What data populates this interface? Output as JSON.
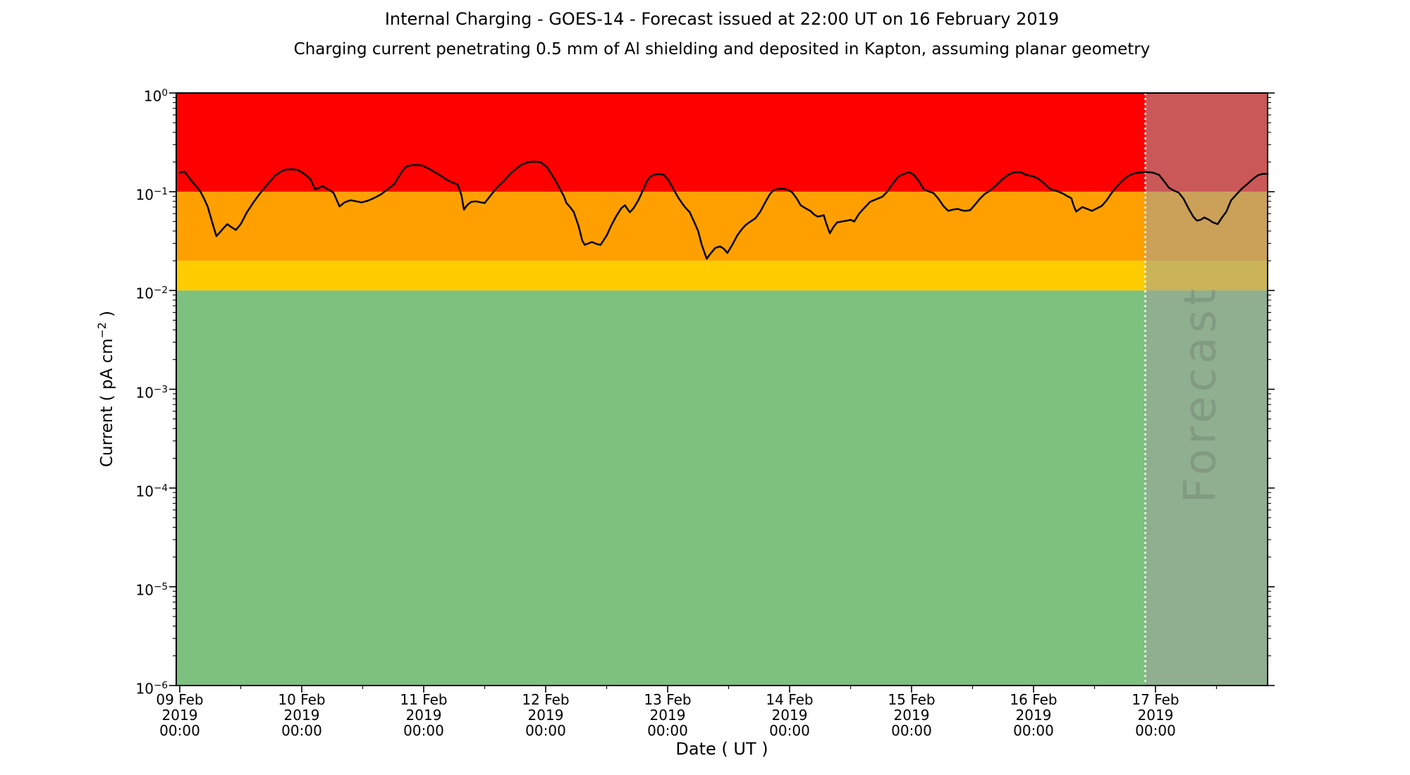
{
  "header": {
    "title": "Internal Charging - GOES-14 - Forecast issued at 22:00 UT on 16 February 2019",
    "subtitle": "Charging current penetrating 0.5 mm of Al shielding and deposited in Kapton, assuming planar geometry"
  },
  "chart_data": {
    "type": "line",
    "title": "Internal Charging - GOES-14 - Forecast issued at 22:00 UT on 16 February 2019",
    "subtitle": "Charging current penetrating 0.5 mm of Al shielding and deposited in Kapton, assuming planar geometry",
    "xlabel": "Date ( UT )",
    "ylabel_prefix": "Current ( pA cm",
    "ylabel_sup": "−2",
    "ylabel_suffix": " )",
    "y_scale": "log",
    "y_domain": [
      1e-06,
      1
    ],
    "x_domain_days": [
      -0.029,
      8.92
    ],
    "x_major_tick_interval_days": 1,
    "x_minor_tick_interval_days": 0.5,
    "grid": "off",
    "legend": "none",
    "xticks": [
      {
        "t": 0,
        "label": [
          "09 Feb",
          "2019",
          "00:00"
        ]
      },
      {
        "t": 1,
        "label": [
          "10 Feb",
          "2019",
          "00:00"
        ]
      },
      {
        "t": 2,
        "label": [
          "11 Feb",
          "2019",
          "00:00"
        ]
      },
      {
        "t": 3,
        "label": [
          "12 Feb",
          "2019",
          "00:00"
        ]
      },
      {
        "t": 4,
        "label": [
          "13 Feb",
          "2019",
          "00:00"
        ]
      },
      {
        "t": 5,
        "label": [
          "14 Feb",
          "2019",
          "00:00"
        ]
      },
      {
        "t": 6,
        "label": [
          "15 Feb",
          "2019",
          "00:00"
        ]
      },
      {
        "t": 7,
        "label": [
          "16 Feb",
          "2019",
          "00:00"
        ]
      },
      {
        "t": 8,
        "label": [
          "17 Feb",
          "2019",
          "00:00"
        ]
      }
    ],
    "yticks": [
      {
        "v": 1,
        "exp": "0"
      },
      {
        "v": 0.1,
        "exp": "−1"
      },
      {
        "v": 0.01,
        "exp": "−2"
      },
      {
        "v": 0.001,
        "exp": "−3"
      },
      {
        "v": 0.0001,
        "exp": "−4"
      },
      {
        "v": 1e-05,
        "exp": "−5"
      },
      {
        "v": 1e-06,
        "exp": "−6"
      }
    ],
    "bands": [
      {
        "name": "red",
        "from": 0.1,
        "to": 1,
        "color": "#ff0000"
      },
      {
        "name": "orange",
        "from": 0.02,
        "to": 0.1,
        "color": "#ffa000"
      },
      {
        "name": "yellow",
        "from": 0.01,
        "to": 0.02,
        "color": "#ffcc00"
      },
      {
        "name": "green",
        "from": 1e-06,
        "to": 0.01,
        "color": "#7cc17d"
      }
    ],
    "forecast": {
      "start_day": 7.9167,
      "end_day": 8.92,
      "watermark": "Forecast",
      "overlay_color": "rgba(160,160,160,0.55)",
      "divider_color": "#ffffff",
      "divider_style": "dotted",
      "watermark_color": "#3c3c3c",
      "watermark_opacity": 0.18
    },
    "series": [
      {
        "name": "charging current",
        "color": "#000000",
        "points": [
          [
            0,
            0.156
          ],
          [
            0.04,
            0.16
          ],
          [
            0.09,
            0.132
          ],
          [
            0.14,
            0.112
          ],
          [
            0.17,
            0.1
          ],
          [
            0.2,
            0.085
          ],
          [
            0.23,
            0.07
          ],
          [
            0.26,
            0.052
          ],
          [
            0.3,
            0.0355
          ],
          [
            0.33,
            0.039
          ],
          [
            0.36,
            0.043
          ],
          [
            0.39,
            0.047
          ],
          [
            0.42,
            0.044
          ],
          [
            0.46,
            0.041
          ],
          [
            0.5,
            0.047
          ],
          [
            0.55,
            0.062
          ],
          [
            0.61,
            0.08
          ],
          [
            0.66,
            0.097
          ],
          [
            0.71,
            0.115
          ],
          [
            0.78,
            0.145
          ],
          [
            0.83,
            0.16
          ],
          [
            0.87,
            0.168
          ],
          [
            0.92,
            0.169
          ],
          [
            0.97,
            0.166
          ],
          [
            1.02,
            0.152
          ],
          [
            1.07,
            0.135
          ],
          [
            1.11,
            0.106
          ],
          [
            1.14,
            0.109
          ],
          [
            1.17,
            0.114
          ],
          [
            1.22,
            0.105
          ],
          [
            1.26,
            0.098
          ],
          [
            1.31,
            0.071
          ],
          [
            1.35,
            0.078
          ],
          [
            1.4,
            0.082
          ],
          [
            1.45,
            0.08
          ],
          [
            1.49,
            0.078
          ],
          [
            1.54,
            0.081
          ],
          [
            1.59,
            0.086
          ],
          [
            1.65,
            0.094
          ],
          [
            1.71,
            0.107
          ],
          [
            1.76,
            0.12
          ],
          [
            1.81,
            0.152
          ],
          [
            1.85,
            0.178
          ],
          [
            1.9,
            0.186
          ],
          [
            1.95,
            0.186
          ],
          [
            1.99,
            0.184
          ],
          [
            2.04,
            0.172
          ],
          [
            2.09,
            0.158
          ],
          [
            2.13,
            0.148
          ],
          [
            2.17,
            0.137
          ],
          [
            2.21,
            0.128
          ],
          [
            2.25,
            0.122
          ],
          [
            2.28,
            0.118
          ],
          [
            2.31,
            0.092
          ],
          [
            2.33,
            0.066
          ],
          [
            2.36,
            0.074
          ],
          [
            2.39,
            0.079
          ],
          [
            2.43,
            0.08
          ],
          [
            2.47,
            0.078
          ],
          [
            2.5,
            0.077
          ],
          [
            2.55,
            0.092
          ],
          [
            2.6,
            0.11
          ],
          [
            2.66,
            0.13
          ],
          [
            2.71,
            0.152
          ],
          [
            2.76,
            0.172
          ],
          [
            2.81,
            0.19
          ],
          [
            2.86,
            0.2
          ],
          [
            2.91,
            0.202
          ],
          [
            2.96,
            0.199
          ],
          [
            3.01,
            0.178
          ],
          [
            3.05,
            0.15
          ],
          [
            3.08,
            0.13
          ],
          [
            3.12,
            0.105
          ],
          [
            3.15,
            0.09
          ],
          [
            3.17,
            0.077
          ],
          [
            3.2,
            0.07
          ],
          [
            3.23,
            0.0625
          ],
          [
            3.27,
            0.045
          ],
          [
            3.3,
            0.032
          ],
          [
            3.32,
            0.029
          ],
          [
            3.35,
            0.03
          ],
          [
            3.38,
            0.031
          ],
          [
            3.42,
            0.0295
          ],
          [
            3.45,
            0.029
          ],
          [
            3.5,
            0.036
          ],
          [
            3.54,
            0.046
          ],
          [
            3.58,
            0.057
          ],
          [
            3.62,
            0.068
          ],
          [
            3.65,
            0.073
          ],
          [
            3.67,
            0.067
          ],
          [
            3.69,
            0.062
          ],
          [
            3.72,
            0.068
          ],
          [
            3.76,
            0.082
          ],
          [
            3.8,
            0.105
          ],
          [
            3.83,
            0.128
          ],
          [
            3.86,
            0.143
          ],
          [
            3.9,
            0.15
          ],
          [
            3.94,
            0.151
          ],
          [
            3.97,
            0.148
          ],
          [
            4.01,
            0.13
          ],
          [
            4.05,
            0.105
          ],
          [
            4.09,
            0.086
          ],
          [
            4.13,
            0.073
          ],
          [
            4.16,
            0.066
          ],
          [
            4.18,
            0.0625
          ],
          [
            4.21,
            0.052
          ],
          [
            4.25,
            0.04
          ],
          [
            4.28,
            0.029
          ],
          [
            4.32,
            0.021
          ],
          [
            4.35,
            0.0235
          ],
          [
            4.39,
            0.027
          ],
          [
            4.43,
            0.028
          ],
          [
            4.46,
            0.0265
          ],
          [
            4.49,
            0.024
          ],
          [
            4.53,
            0.029
          ],
          [
            4.57,
            0.036
          ],
          [
            4.61,
            0.042
          ],
          [
            4.64,
            0.046
          ],
          [
            4.68,
            0.05
          ],
          [
            4.72,
            0.054
          ],
          [
            4.76,
            0.063
          ],
          [
            4.8,
            0.078
          ],
          [
            4.84,
            0.095
          ],
          [
            4.87,
            0.104
          ],
          [
            4.91,
            0.107
          ],
          [
            4.95,
            0.107
          ],
          [
            4.98,
            0.105
          ],
          [
            5.02,
            0.099
          ],
          [
            5.06,
            0.085
          ],
          [
            5.09,
            0.073
          ],
          [
            5.13,
            0.068
          ],
          [
            5.17,
            0.064
          ],
          [
            5.2,
            0.059
          ],
          [
            5.23,
            0.056
          ],
          [
            5.26,
            0.057
          ],
          [
            5.28,
            0.058
          ],
          [
            5.3,
            0.048
          ],
          [
            5.33,
            0.038
          ],
          [
            5.36,
            0.044
          ],
          [
            5.39,
            0.049
          ],
          [
            5.43,
            0.05
          ],
          [
            5.47,
            0.051
          ],
          [
            5.5,
            0.052
          ],
          [
            5.53,
            0.05
          ],
          [
            5.57,
            0.06
          ],
          [
            5.61,
            0.068
          ],
          [
            5.66,
            0.079
          ],
          [
            5.71,
            0.084
          ],
          [
            5.76,
            0.089
          ],
          [
            5.8,
            0.1
          ],
          [
            5.84,
            0.118
          ],
          [
            5.89,
            0.142
          ],
          [
            5.93,
            0.15
          ],
          [
            5.98,
            0.158
          ],
          [
            6.02,
            0.148
          ],
          [
            6.06,
            0.128
          ],
          [
            6.1,
            0.106
          ],
          [
            6.14,
            0.101
          ],
          [
            6.18,
            0.097
          ],
          [
            6.22,
            0.085
          ],
          [
            6.26,
            0.072
          ],
          [
            6.3,
            0.064
          ],
          [
            6.34,
            0.066
          ],
          [
            6.38,
            0.067
          ],
          [
            6.41,
            0.065
          ],
          [
            6.44,
            0.064
          ],
          [
            6.48,
            0.065
          ],
          [
            6.52,
            0.074
          ],
          [
            6.56,
            0.085
          ],
          [
            6.6,
            0.095
          ],
          [
            6.64,
            0.102
          ],
          [
            6.69,
            0.115
          ],
          [
            6.74,
            0.132
          ],
          [
            6.79,
            0.148
          ],
          [
            6.84,
            0.157
          ],
          [
            6.87,
            0.158
          ],
          [
            6.9,
            0.157
          ],
          [
            6.93,
            0.15
          ],
          [
            6.96,
            0.146
          ],
          [
            7.0,
            0.143
          ],
          [
            7.04,
            0.135
          ],
          [
            7.08,
            0.124
          ],
          [
            7.13,
            0.108
          ],
          [
            7.16,
            0.104
          ],
          [
            7.19,
            0.102
          ],
          [
            7.24,
            0.096
          ],
          [
            7.28,
            0.09
          ],
          [
            7.31,
            0.086
          ],
          [
            7.33,
            0.072
          ],
          [
            7.35,
            0.063
          ],
          [
            7.38,
            0.067
          ],
          [
            7.4,
            0.07
          ],
          [
            7.44,
            0.067
          ],
          [
            7.48,
            0.064
          ],
          [
            7.52,
            0.068
          ],
          [
            7.56,
            0.072
          ],
          [
            7.6,
            0.082
          ],
          [
            7.64,
            0.097
          ],
          [
            7.68,
            0.112
          ],
          [
            7.73,
            0.13
          ],
          [
            7.78,
            0.145
          ],
          [
            7.83,
            0.154
          ],
          [
            7.88,
            0.157
          ],
          [
            7.93,
            0.158
          ],
          [
            7.98,
            0.156
          ],
          [
            8.03,
            0.148
          ],
          [
            8.07,
            0.128
          ],
          [
            8.11,
            0.11
          ],
          [
            8.15,
            0.103
          ],
          [
            8.19,
            0.098
          ],
          [
            8.23,
            0.085
          ],
          [
            8.27,
            0.068
          ],
          [
            8.31,
            0.056
          ],
          [
            8.34,
            0.051
          ],
          [
            8.37,
            0.052
          ],
          [
            8.4,
            0.055
          ],
          [
            8.44,
            0.052
          ],
          [
            8.47,
            0.049
          ],
          [
            8.51,
            0.047
          ],
          [
            8.55,
            0.056
          ],
          [
            8.58,
            0.0625
          ],
          [
            8.62,
            0.082
          ],
          [
            8.66,
            0.093
          ],
          [
            8.71,
            0.108
          ],
          [
            8.76,
            0.122
          ],
          [
            8.8,
            0.135
          ],
          [
            8.84,
            0.147
          ],
          [
            8.88,
            0.152
          ],
          [
            8.92,
            0.152
          ]
        ]
      }
    ]
  }
}
